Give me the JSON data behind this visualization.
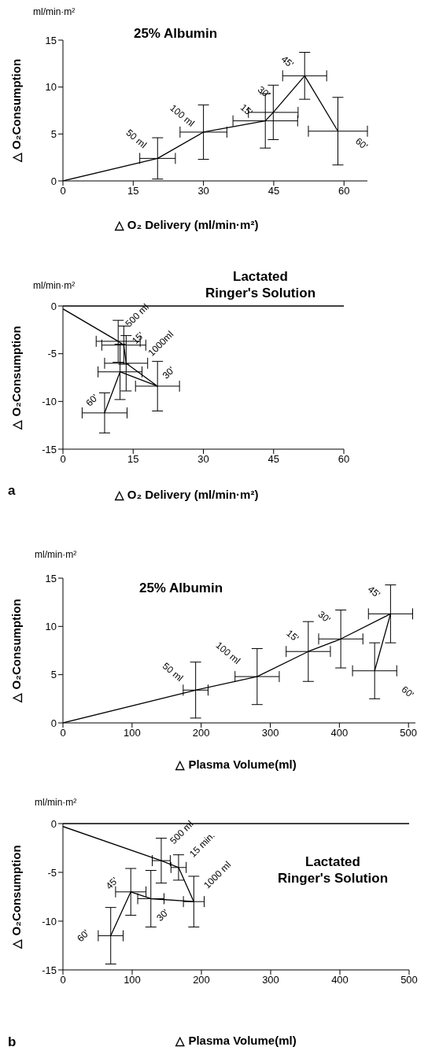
{
  "chart_data": [
    {
      "type": "line",
      "title": "25% Albumin",
      "xlabel": "△ O₂ Delivery (ml/min·m²)",
      "ylabel": "△ O₂Consumption",
      "color": "#000000",
      "marker": "none",
      "x": [
        0,
        20.2,
        30,
        43.2,
        44.9,
        51.6,
        58.7
      ],
      "values": [
        0,
        2.4,
        5.2,
        6.4,
        7.3,
        11.2,
        5.3
      ],
      "errors": [
        null,
        2.2,
        2.9,
        2.9,
        2.9,
        2.5,
        3.6
      ],
      "xerrors": [
        null,
        3.8,
        5,
        6.9,
        5.3,
        4.7,
        6.3
      ],
      "xlim": [
        0,
        65
      ],
      "xticks": [
        0,
        15,
        30,
        45,
        60
      ],
      "ylim": [
        0,
        15
      ],
      "yticks": [
        0,
        5,
        10,
        15
      ],
      "annotations": [
        "ml/min·m²",
        {
          "text": "50 ml",
          "x": 20.2,
          "y": 2.4
        },
        {
          "text": "100 ml",
          "x": 30,
          "y": 5.2
        },
        {
          "text": "15'",
          "x": 43.2,
          "y": 6.4
        },
        {
          "text": "30'",
          "x": 44.9,
          "y": 7.3
        },
        {
          "text": "45'",
          "x": 51.6,
          "y": 11.2
        },
        {
          "text": "60'",
          "x": 58.7,
          "y": 5.3
        }
      ]
    },
    {
      "type": "line",
      "title": "Lactated\nRinger's Solution",
      "xlabel": "△ O₂ Delivery (ml/min·m²)",
      "ylabel": "△ O₂Consumption",
      "color": "#000000",
      "marker": "none",
      "x": [
        0,
        11.8,
        13,
        13.5,
        20.2,
        12.2,
        8.9
      ],
      "values": [
        -0.3,
        -3.7,
        -4.1,
        -6.0,
        -8.4,
        -6.9,
        -11.2
      ],
      "errors": [
        null,
        2.2,
        2,
        2.9,
        2.6,
        2.9,
        2.1
      ],
      "xerrors": [
        null,
        4.7,
        4.7,
        4.6,
        4.7,
        4.7,
        4.8
      ],
      "xlim": [
        0,
        60
      ],
      "xticks": [
        0,
        15,
        30,
        45,
        60
      ],
      "ylim": [
        -15,
        0
      ],
      "yticks": [
        -15,
        -10,
        -5,
        0
      ],
      "ref_lines": [
        {
          "axis": "y",
          "value": 0
        }
      ],
      "annotations": [
        "ml/min·m²",
        {
          "text": "500 ml",
          "x": 11.8,
          "y": -3.7
        },
        {
          "text": "15'",
          "x": 13,
          "y": -4.1
        },
        {
          "text": "1000ml",
          "x": 13.5,
          "y": -6.0
        },
        {
          "text": "30'",
          "x": 20.2,
          "y": -8.4
        },
        {
          "text": "60'",
          "x": 8.9,
          "y": -11.2
        },
        "a"
      ]
    },
    {
      "type": "line",
      "title": "25% Albumin",
      "xlabel": "△ Plasma Volume(ml)",
      "ylabel": "△ O₂Consumption",
      "color": "#000000",
      "marker": "none",
      "x": [
        0,
        192,
        281,
        355,
        402,
        474,
        451
      ],
      "values": [
        0,
        3.4,
        4.8,
        7.4,
        8.7,
        11.3,
        5.4
      ],
      "errors": [
        null,
        2.9,
        2.9,
        3.1,
        3,
        3,
        2.9
      ],
      "xerrors": [
        null,
        18,
        32,
        32,
        32,
        32,
        32
      ],
      "xlim": [
        0,
        510
      ],
      "xticks": [
        0,
        100,
        200,
        300,
        400,
        500
      ],
      "ylim": [
        0,
        15
      ],
      "yticks": [
        0,
        5,
        10,
        15
      ],
      "annotations": [
        "ml/min·m²",
        {
          "text": "50 ml",
          "x": 192,
          "y": 3.4
        },
        {
          "text": "100 ml",
          "x": 281,
          "y": 4.8
        },
        {
          "text": "15'",
          "x": 355,
          "y": 7.4
        },
        {
          "text": "30'",
          "x": 402,
          "y": 8.7
        },
        {
          "text": "45'",
          "x": 474,
          "y": 11.3
        },
        {
          "text": "60'",
          "x": 451,
          "y": 5.4
        }
      ]
    },
    {
      "type": "line",
      "title": "Lactated\nRinger's Solution",
      "xlabel": "△ Plasma Volume(ml)",
      "ylabel": "△ O₂Consumption",
      "color": "#000000",
      "marker": "none",
      "x": [
        0,
        142,
        167,
        189,
        127,
        98,
        69
      ],
      "values": [
        -0.3,
        -3.8,
        -4.5,
        -8.0,
        -7.7,
        -7.0,
        -11.5
      ],
      "errors": [
        null,
        2.3,
        1.3,
        2.6,
        2.9,
        2.4,
        2.9
      ],
      "xerrors": [
        null,
        13,
        11,
        15,
        19,
        22,
        18
      ],
      "xlim": [
        0,
        500
      ],
      "xticks": [
        0,
        100,
        200,
        300,
        400,
        500
      ],
      "ylim": [
        -15,
        0
      ],
      "yticks": [
        -15,
        -10,
        -5,
        0
      ],
      "ref_lines": [
        {
          "axis": "y",
          "value": 0
        }
      ],
      "annotations": [
        "ml/min·m²",
        {
          "text": "500 ml",
          "x": 142,
          "y": -3.8
        },
        {
          "text": "15 min.",
          "x": 167,
          "y": -4.5
        },
        {
          "text": "1000 ml",
          "x": 189,
          "y": -8.0
        },
        {
          "text": "30'",
          "x": 127,
          "y": -7.7
        },
        {
          "text": "45'",
          "x": 98,
          "y": -7.0
        },
        {
          "text": "60'",
          "x": 69,
          "y": -11.5
        },
        "b"
      ]
    }
  ]
}
